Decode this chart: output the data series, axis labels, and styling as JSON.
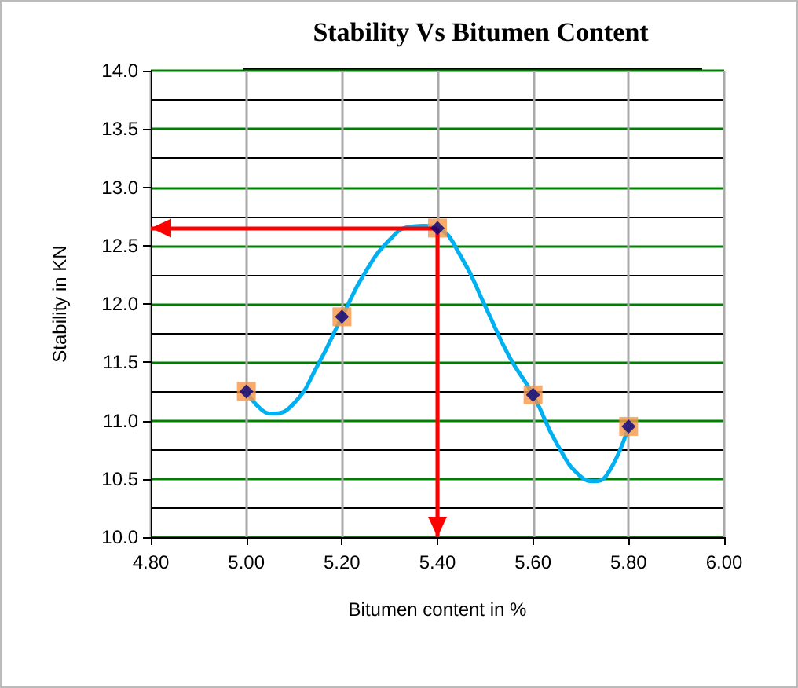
{
  "chart_data": {
    "type": "scatter",
    "title": "Stability Vs Bitumen Content",
    "xlabel": "Bitumen content in %",
    "ylabel": "Stability in KN",
    "xlim": [
      4.8,
      6.0
    ],
    "xticks": [
      {
        "value": 4.8,
        "label": "4.80"
      },
      {
        "value": 5.0,
        "label": "5.00"
      },
      {
        "value": 5.2,
        "label": "5.20"
      },
      {
        "value": 5.4,
        "label": "5.40"
      },
      {
        "value": 5.6,
        "label": "5.60"
      },
      {
        "value": 5.8,
        "label": "5.80"
      },
      {
        "value": 6.0,
        "label": "6.00"
      }
    ],
    "ylim": [
      10.0,
      14.0
    ],
    "yticks": [
      {
        "value": 10,
        "label": "10.0"
      },
      {
        "value": 10.5,
        "label": "10.5"
      },
      {
        "value": 11,
        "label": "11.0"
      },
      {
        "value": 11.5,
        "label": "11.5"
      },
      {
        "value": 12,
        "label": "12.0"
      },
      {
        "value": 12.5,
        "label": "12.5"
      },
      {
        "value": 13,
        "label": "13.0"
      },
      {
        "value": 13.5,
        "label": "13.5"
      },
      {
        "value": 14,
        "label": "14.0"
      }
    ],
    "grid": true,
    "marker": "square",
    "series": [
      {
        "type": "line",
        "color": "#00b0f0",
        "marker": "none",
        "x": [
          5.0,
          5.03,
          5.055,
          5.1,
          5.15,
          5.2,
          5.25,
          5.3,
          5.34,
          5.37,
          5.4,
          5.45,
          5.5,
          5.55,
          5.6,
          5.65,
          5.7,
          5.73,
          5.76,
          5.8
        ],
        "values": [
          11.25,
          11.1,
          11.06,
          11.15,
          11.48,
          11.89,
          12.28,
          12.55,
          12.66,
          12.67,
          12.65,
          12.4,
          11.98,
          11.55,
          11.22,
          10.8,
          10.52,
          10.48,
          10.57,
          10.95
        ]
      },
      {
        "color": "#f79646",
        "x": [
          5.0,
          5.2,
          5.4,
          5.6,
          5.8
        ],
        "values": [
          11.25,
          11.89,
          12.65,
          11.22,
          10.95
        ]
      }
    ],
    "ref_lines": [
      {
        "axis": "x",
        "value": 5.4,
        "color": "#ff0000"
      },
      {
        "axis": "y",
        "value": 12.65,
        "color": "#ff0000"
      }
    ]
  }
}
